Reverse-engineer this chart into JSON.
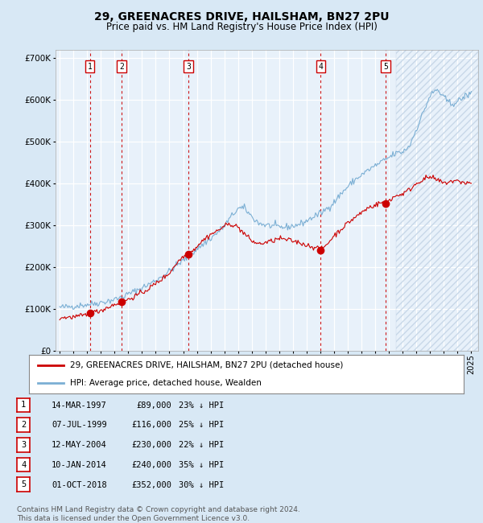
{
  "title": "29, GREENACRES DRIVE, HAILSHAM, BN27 2PU",
  "subtitle": "Price paid vs. HM Land Registry's House Price Index (HPI)",
  "title_fontsize": 10,
  "subtitle_fontsize": 8.5,
  "bg_color": "#d8e8f5",
  "plot_bg_color": "#e8f1fa",
  "grid_color": "#ffffff",
  "ylim": [
    0,
    720000
  ],
  "yticks": [
    0,
    100000,
    200000,
    300000,
    400000,
    500000,
    600000,
    700000
  ],
  "xlim_start": 1994.7,
  "xlim_end": 2025.5,
  "sale_dates": [
    1997.2,
    1999.52,
    2004.37,
    2014.03,
    2018.75
  ],
  "sale_prices": [
    89000,
    116000,
    230000,
    240000,
    352000
  ],
  "sale_labels": [
    "1",
    "2",
    "3",
    "4",
    "5"
  ],
  "sale_date_strings": [
    "14-MAR-1997",
    "07-JUL-1999",
    "12-MAY-2004",
    "10-JAN-2014",
    "01-OCT-2018"
  ],
  "sale_price_strings": [
    "£89,000",
    "£116,000",
    "£230,000",
    "£240,000",
    "£352,000"
  ],
  "sale_hpi_strings": [
    "23% ↓ HPI",
    "25% ↓ HPI",
    "22% ↓ HPI",
    "35% ↓ HPI",
    "30% ↓ HPI"
  ],
  "red_line_color": "#cc0000",
  "blue_line_color": "#7bafd4",
  "marker_color": "#cc0000",
  "vline_color": "#cc0000",
  "legend_label_red": "29, GREENACRES DRIVE, HAILSHAM, BN27 2PU (detached house)",
  "legend_label_blue": "HPI: Average price, detached house, Wealden",
  "footer_text": "Contains HM Land Registry data © Crown copyright and database right 2024.\nThis data is licensed under the Open Government Licence v3.0.",
  "footer_fontsize": 6.5,
  "legend_fontsize": 7.5,
  "table_fontsize": 7.5,
  "axis_fontsize": 7,
  "hpi_anchors_x": [
    1995.0,
    1995.5,
    1996.0,
    1996.5,
    1997.0,
    1997.5,
    1998.0,
    1998.5,
    1999.0,
    1999.5,
    2000.0,
    2000.5,
    2001.0,
    2001.5,
    2002.0,
    2002.5,
    2003.0,
    2003.5,
    2004.0,
    2004.5,
    2005.0,
    2005.5,
    2006.0,
    2006.5,
    2007.0,
    2007.5,
    2008.0,
    2008.5,
    2009.0,
    2009.5,
    2010.0,
    2010.5,
    2011.0,
    2011.5,
    2012.0,
    2012.5,
    2013.0,
    2013.5,
    2014.0,
    2014.5,
    2015.0,
    2015.5,
    2016.0,
    2016.5,
    2017.0,
    2017.5,
    2018.0,
    2018.5,
    2019.0,
    2019.5,
    2020.0,
    2020.5,
    2021.0,
    2021.5,
    2022.0,
    2022.5,
    2023.0,
    2023.5,
    2024.0,
    2024.5,
    2025.0
  ],
  "hpi_anchors_y": [
    103000,
    104000,
    106000,
    108000,
    110000,
    112000,
    115000,
    118000,
    122000,
    127000,
    135000,
    142000,
    150000,
    158000,
    168000,
    178000,
    190000,
    203000,
    215000,
    228000,
    243000,
    255000,
    268000,
    282000,
    298000,
    320000,
    340000,
    340000,
    320000,
    305000,
    300000,
    298000,
    295000,
    295000,
    298000,
    302000,
    310000,
    320000,
    328000,
    340000,
    355000,
    375000,
    392000,
    408000,
    420000,
    432000,
    442000,
    452000,
    462000,
    472000,
    475000,
    490000,
    530000,
    570000,
    610000,
    625000,
    605000,
    590000,
    595000,
    608000,
    615000
  ],
  "red_anchors_x": [
    1995.0,
    1995.5,
    1996.0,
    1996.5,
    1997.0,
    1997.2,
    1997.5,
    1998.0,
    1998.5,
    1999.0,
    1999.5,
    1999.52,
    2000.0,
    2000.5,
    2001.0,
    2001.5,
    2002.0,
    2002.5,
    2003.0,
    2003.5,
    2004.0,
    2004.37,
    2004.8,
    2005.0,
    2005.5,
    2006.0,
    2006.5,
    2007.0,
    2007.5,
    2008.0,
    2008.5,
    2009.0,
    2009.5,
    2010.0,
    2010.5,
    2011.0,
    2011.5,
    2012.0,
    2012.5,
    2013.0,
    2013.5,
    2014.0,
    2014.03,
    2014.5,
    2015.0,
    2015.5,
    2016.0,
    2016.5,
    2017.0,
    2017.5,
    2018.0,
    2018.5,
    2018.75,
    2019.0,
    2019.5,
    2020.0,
    2020.5,
    2021.0,
    2021.5,
    2022.0,
    2022.5,
    2023.0,
    2023.5,
    2024.0,
    2024.5,
    2025.0
  ],
  "red_anchors_y": [
    78000,
    79000,
    80000,
    82000,
    85000,
    89000,
    91000,
    96000,
    103000,
    110000,
    115000,
    116000,
    122000,
    130000,
    138000,
    148000,
    160000,
    172000,
    185000,
    208000,
    225000,
    230000,
    242000,
    250000,
    265000,
    278000,
    286000,
    298000,
    303000,
    295000,
    278000,
    262000,
    255000,
    258000,
    262000,
    268000,
    265000,
    262000,
    258000,
    252000,
    248000,
    242000,
    240000,
    255000,
    275000,
    290000,
    305000,
    318000,
    330000,
    342000,
    348000,
    355000,
    352000,
    360000,
    370000,
    375000,
    385000,
    400000,
    410000,
    415000,
    408000,
    400000,
    405000,
    405000,
    402000,
    400000
  ]
}
